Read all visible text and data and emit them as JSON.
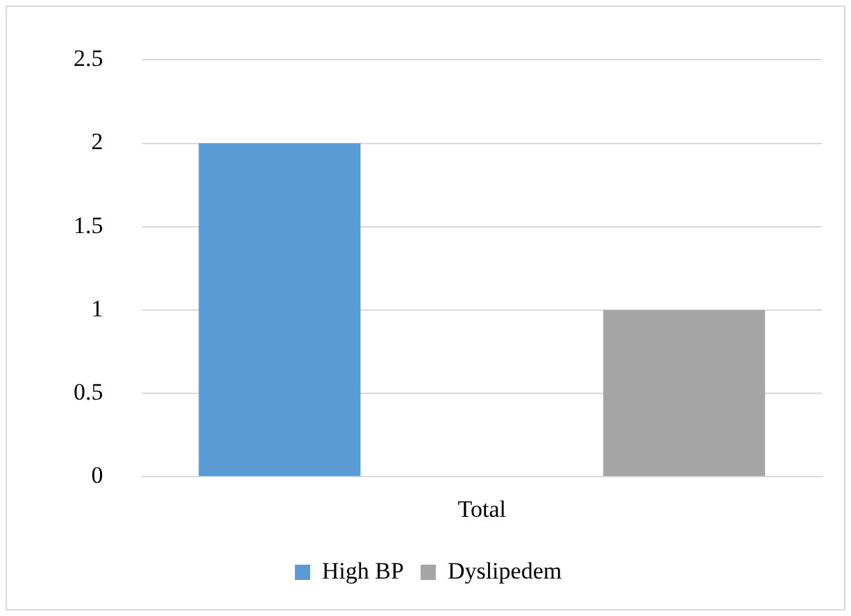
{
  "chart_data": {
    "type": "bar",
    "categories": [
      "Total"
    ],
    "series": [
      {
        "name": "High BP",
        "color": "#5b9bd5",
        "values": [
          2
        ]
      },
      {
        "name": "Dyslipedem",
        "color": "#a5a5a5",
        "values": [
          1
        ]
      }
    ],
    "ylim": [
      0,
      2.5
    ],
    "yticks": [
      0,
      0.5,
      1,
      1.5,
      2,
      2.5
    ],
    "grid": "y",
    "legend": "bottom"
  }
}
